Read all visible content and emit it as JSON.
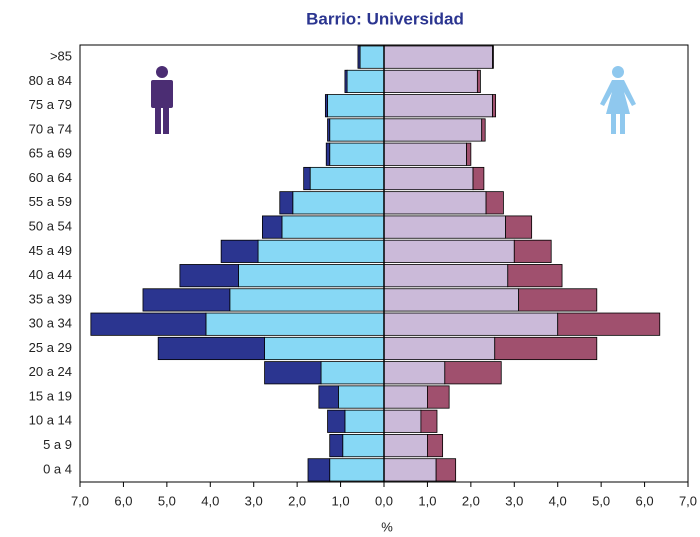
{
  "chart_data": {
    "type": "pyramid",
    "title": "Barrio: Universidad",
    "x_label": "%",
    "categories": [
      ">85",
      "80 a 84",
      "75 a 79",
      "70 a 74",
      "65 a 69",
      "60 a 64",
      "55 a 59",
      "50 a 54",
      "45 a 49",
      "40 a 44",
      "35 a 39",
      "30 a 34",
      "25 a 29",
      "20 a 24",
      "15 a 19",
      "10 a 14",
      "5 a 9",
      "0 a 4"
    ],
    "series": [
      {
        "side": "left",
        "color": "#87d8f5",
        "values": [
          0.55,
          0.85,
          1.3,
          1.25,
          1.25,
          1.7,
          2.1,
          2.35,
          2.9,
          3.35,
          3.55,
          4.1,
          2.75,
          1.45,
          1.05,
          0.9,
          0.95,
          1.25
        ]
      },
      {
        "side": "left",
        "color": "#2b3590",
        "values": [
          0.05,
          0.05,
          0.05,
          0.05,
          0.08,
          0.15,
          0.3,
          0.45,
          0.85,
          1.35,
          2.0,
          2.65,
          2.45,
          1.3,
          0.45,
          0.4,
          0.3,
          0.5
        ]
      },
      {
        "side": "right",
        "color": "#cbbad9",
        "values": [
          2.5,
          2.15,
          2.5,
          2.25,
          1.9,
          2.05,
          2.35,
          2.8,
          3.0,
          2.85,
          3.1,
          4.0,
          2.55,
          1.4,
          1.0,
          0.85,
          1.0,
          1.2
        ]
      },
      {
        "side": "right",
        "color": "#a0506e",
        "values": [
          0.02,
          0.07,
          0.07,
          0.08,
          0.1,
          0.25,
          0.4,
          0.6,
          0.85,
          1.25,
          1.8,
          2.35,
          2.35,
          1.3,
          0.5,
          0.37,
          0.35,
          0.45
        ]
      }
    ],
    "xlim": [
      -7,
      7
    ],
    "xticks": [
      {
        "value": -7,
        "label": "7,0"
      },
      {
        "value": -6,
        "label": "6,0"
      },
      {
        "value": -5,
        "label": "5,0"
      },
      {
        "value": -4,
        "label": "4,0"
      },
      {
        "value": -3,
        "label": "3,0"
      },
      {
        "value": -2,
        "label": "2,0"
      },
      {
        "value": -1,
        "label": "1,0"
      },
      {
        "value": 0,
        "label": "0,0"
      },
      {
        "value": 1,
        "label": "1,0"
      },
      {
        "value": 2,
        "label": "2,0"
      },
      {
        "value": 3,
        "label": "3,0"
      },
      {
        "value": 4,
        "label": "4,0"
      },
      {
        "value": 5,
        "label": "5,0"
      },
      {
        "value": 6,
        "label": "6,0"
      },
      {
        "value": 7,
        "label": "7,0"
      }
    ]
  }
}
